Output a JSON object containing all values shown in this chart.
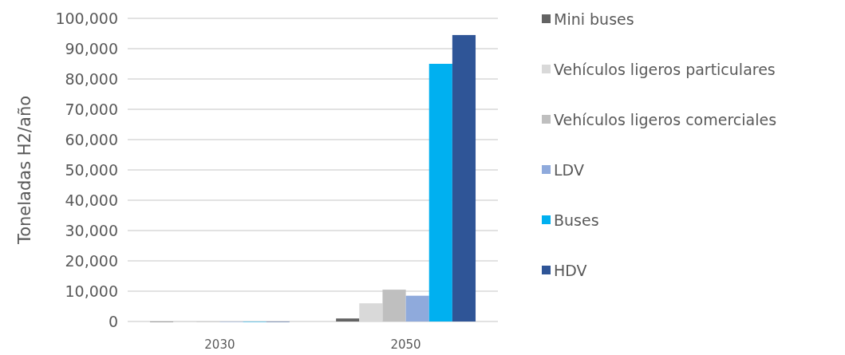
{
  "chart_data": {
    "type": "bar",
    "ylabel": "Toneladas H2/año",
    "categories": [
      "2030",
      "2050"
    ],
    "series": [
      {
        "name": "Mini buses",
        "color": "#636363",
        "values": [
          0,
          1000
        ]
      },
      {
        "name": "Vehículos ligeros particulares",
        "color": "#d9d9d9",
        "values": [
          0,
          6000
        ]
      },
      {
        "name": "Vehículos ligeros comerciales",
        "color": "#bfbfbf",
        "values": [
          0,
          10500
        ]
      },
      {
        "name": "LDV",
        "color": "#8faadc",
        "values": [
          0,
          8500
        ]
      },
      {
        "name": "Buses",
        "color": "#00b0f0",
        "values": [
          0,
          85000
        ]
      },
      {
        "name": "HDV",
        "color": "#2f5597",
        "values": [
          0,
          94500
        ]
      }
    ],
    "ylim": [
      0,
      100000
    ],
    "yticks": [
      {
        "value": 0,
        "label": "0"
      },
      {
        "value": 10000,
        "label": "10,000"
      },
      {
        "value": 20000,
        "label": "20,000"
      },
      {
        "value": 30000,
        "label": "30,000"
      },
      {
        "value": 40000,
        "label": "40,000"
      },
      {
        "value": 50000,
        "label": "50,000"
      },
      {
        "value": 60000,
        "label": "60,000"
      },
      {
        "value": 70000,
        "label": "70,000"
      },
      {
        "value": 80000,
        "label": "80,000"
      },
      {
        "value": 90000,
        "label": "90,000"
      },
      {
        "value": 100000,
        "label": "100,000"
      }
    ],
    "grid": "y",
    "legend": "right"
  }
}
